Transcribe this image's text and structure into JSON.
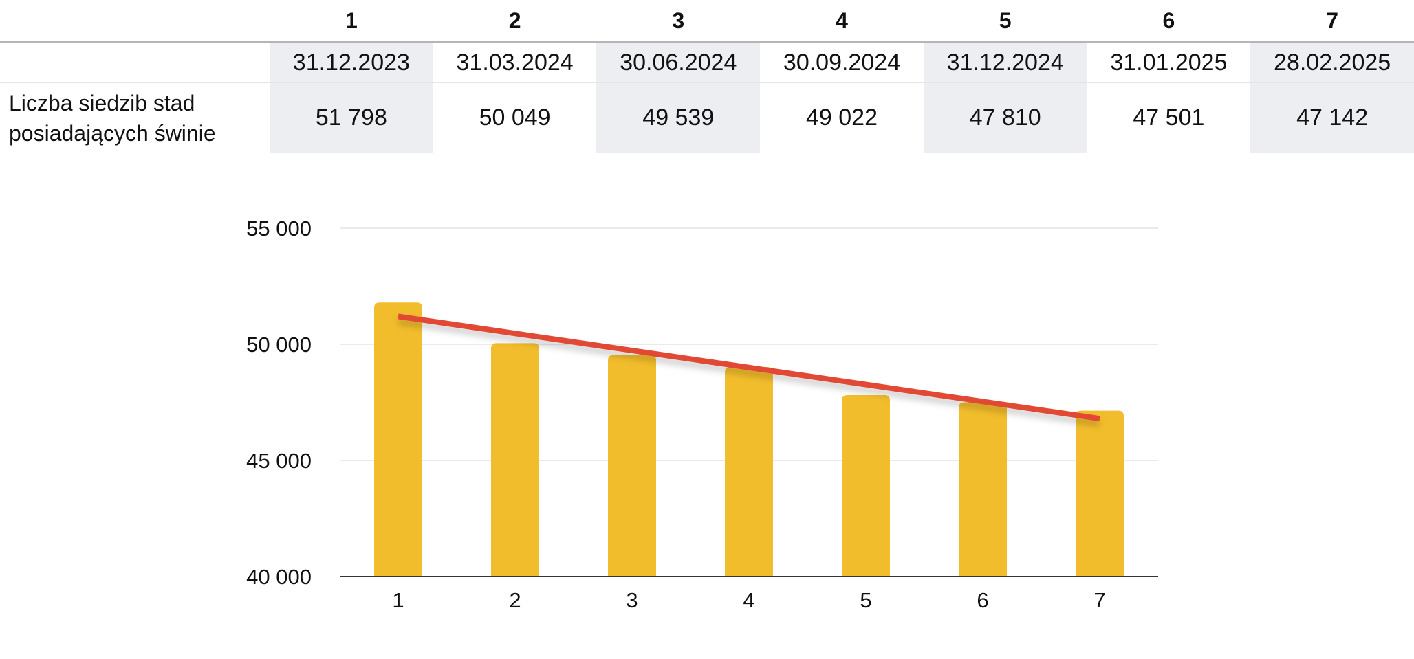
{
  "table": {
    "columns": [
      "1",
      "2",
      "3",
      "4",
      "5",
      "6",
      "7"
    ],
    "dates": [
      "31.12.2023",
      "31.03.2024",
      "30.06.2024",
      "30.09.2024",
      "31.12.2024",
      "31.01.2025",
      "28.02.2025"
    ],
    "row_label": "Liczba siedzib stad posiadających świnie",
    "values": [
      "51 798",
      "50 049",
      "49 539",
      "49 022",
      "47 810",
      "47 501",
      "47 142"
    ]
  },
  "chart_data": {
    "type": "bar",
    "categories": [
      "1",
      "2",
      "3",
      "4",
      "5",
      "6",
      "7"
    ],
    "series": [
      {
        "values": [
          51798,
          50049,
          49539,
          49022,
          47810,
          47501,
          47142
        ]
      }
    ],
    "trendline": {
      "start": 51200,
      "end": 46800
    },
    "ylim": [
      40000,
      55000
    ],
    "yticks": [
      40000,
      45000,
      50000,
      55000
    ],
    "ytick_labels": [
      "40 000",
      "45 000",
      "50 000",
      "55 000"
    ],
    "grid": true,
    "legend": "none",
    "colors": {
      "bar": "#f2bd2c",
      "trend": "#e14a35",
      "grid": "#e3e3e3",
      "axis": "#333333"
    }
  }
}
